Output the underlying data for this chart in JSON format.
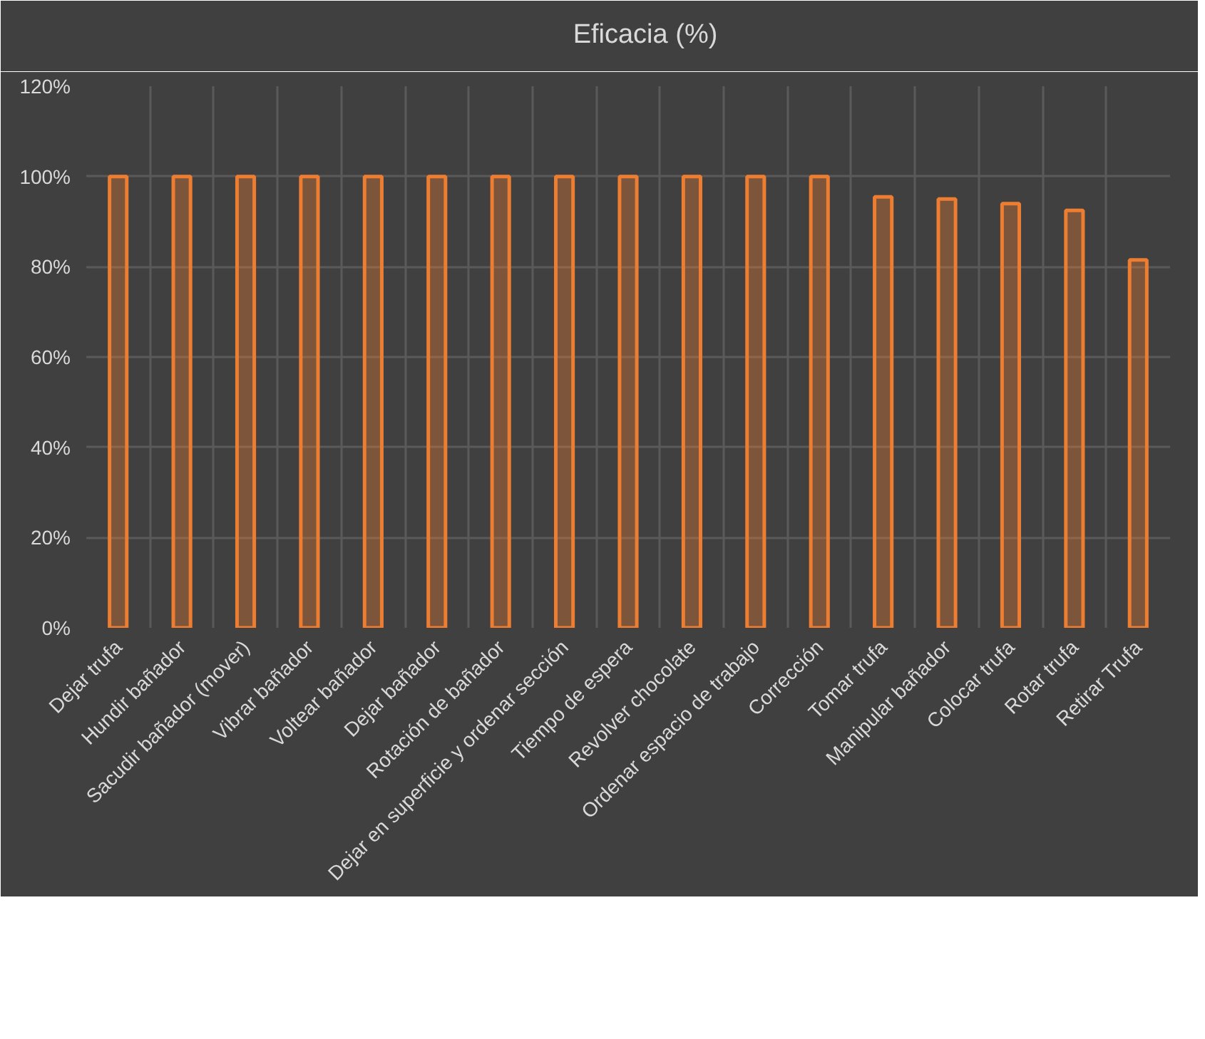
{
  "chart_data": {
    "type": "bar",
    "categories": [
      "Dejar trufa",
      "Hundir bañador",
      "Sacudir bañador (mover)",
      "Vibrar bañador",
      "Voltear bañador",
      "Dejar bañador",
      "Rotación de bañador",
      "Dejar en superficie y ordenar sección",
      "Tiempo de espera",
      "Revolver chocolate",
      "Ordenar espacio de trabajo",
      "Corrección",
      "Tomar trufa",
      "Manipular bañador",
      "Colocar trufa",
      "Rotar trufa",
      "Retirar Trufa"
    ],
    "series": [
      {
        "name": "Eficacia (%)",
        "color": "#ed7d31",
        "values": [
          100,
          100,
          100,
          100,
          100,
          100,
          100,
          100,
          100,
          100,
          100,
          100,
          95.5,
          95,
          94,
          92.5,
          81.5
        ]
      }
    ],
    "ylim": [
      0,
      120
    ],
    "yticks": [
      {
        "value": 0,
        "label": "0%"
      },
      {
        "value": 20,
        "label": "20%"
      },
      {
        "value": 40,
        "label": "40%"
      },
      {
        "value": 60,
        "label": "60%"
      },
      {
        "value": 80,
        "label": "80%"
      },
      {
        "value": 100,
        "label": "100%"
      },
      {
        "value": 120,
        "label": "120%"
      }
    ],
    "grid": true,
    "legend": "top"
  }
}
